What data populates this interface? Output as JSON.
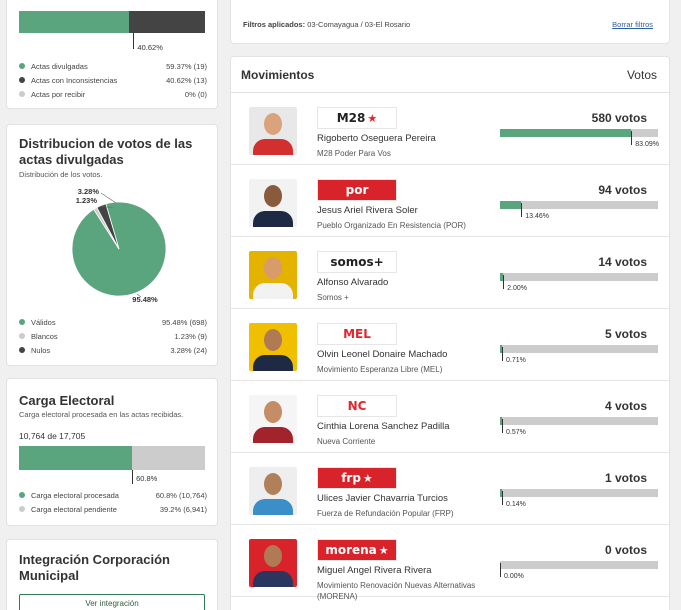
{
  "actas": {
    "bar_label": "40.62%",
    "divulgadas_fraction": 0.5937,
    "legend": [
      {
        "label": "Actas divulgadas",
        "value": "59.37% (19)",
        "color": "#5aa57e"
      },
      {
        "label": "Actas con Inconsistencias",
        "value": "40.62% (13)",
        "color": "#444444"
      },
      {
        "label": "Actas por recibir",
        "value": "0% (0)",
        "color": "#cccccc"
      }
    ]
  },
  "distribucion": {
    "title": "Distribucion de votos de las actas divulgadas",
    "subtitle": "Distribución de los votos.",
    "legend": [
      {
        "label": "Válidos",
        "value": "95.48% (698)",
        "color": "#5aa57e"
      },
      {
        "label": "Blancos",
        "value": "1.23% (9)",
        "color": "#cccccc"
      },
      {
        "label": "Nulos",
        "value": "3.28% (24)",
        "color": "#444444"
      }
    ]
  },
  "chart_data": {
    "type": "pie",
    "categories": [
      "Válidos",
      "Blancos",
      "Nulos"
    ],
    "values": [
      95.48,
      1.23,
      3.28
    ],
    "data_labels": [
      "95.48%",
      "1.23%",
      "3.28%"
    ],
    "colors": [
      "#5aa57e",
      "#cccccc",
      "#444444"
    ]
  },
  "carga": {
    "title": "Carga Electoral",
    "subtitle": "Carga electoral procesada en las actas recibidas.",
    "count": "10,764 de 17,705",
    "bar_label": "60.8%",
    "processed_fraction": 0.608,
    "legend": [
      {
        "label": "Carga electoral procesada",
        "value": "60.8% (10,764)",
        "color": "#5aa57e"
      },
      {
        "label": "Carga electoral pendiente",
        "value": "39.2% (6,941)",
        "color": "#cccccc"
      }
    ]
  },
  "integracion": {
    "title": "Integración Corporación Municipal",
    "button": "Ver integración"
  },
  "filters": {
    "label": "Filtros aplicados:",
    "value": "03-Comayagua / 03-El Rosario",
    "clear": "Borrar filtros"
  },
  "movimientos": {
    "header": "Movimientos",
    "votes_header": "Votos",
    "rows": [
      {
        "name": "Rigoberto Oseguera Pereira",
        "party": "M28 Poder Para Vos",
        "votes": "580 votos",
        "pct": "83.09%",
        "fraction": 0.8309,
        "logo": "M28",
        "logo_icon": "star-icon",
        "logo_color": "#e3262d",
        "logo_bg": "#ffffff",
        "logo_text_color": "#222222",
        "shirt": "#d32f2f",
        "skin": "#d9a47c",
        "bg": "#e8e8e8"
      },
      {
        "name": "Jesus Ariel Rivera Soler",
        "party": "Pueblo Organizado En Resistencia (POR)",
        "votes": "94 votos",
        "pct": "13.46%",
        "fraction": 0.1346,
        "logo": "por",
        "logo_icon": "",
        "logo_color": "#ffffff",
        "logo_bg": "#d8232a",
        "logo_text_color": "#ffffff",
        "shirt": "#1e2a44",
        "skin": "#8a5a3c",
        "bg": "#f2f2f2"
      },
      {
        "name": "Alfonso Alvarado",
        "party": "Somos +",
        "votes": "14 votos",
        "pct": "2.00%",
        "fraction": 0.02,
        "logo": "somos+",
        "logo_icon": "",
        "logo_color": "#222222",
        "logo_bg": "#ffffff",
        "logo_text_color": "#222222",
        "shirt": "#f2f2f2",
        "skin": "#d99a6c",
        "bg": "#e3b300"
      },
      {
        "name": "Olvin Leonel Donaire Machado",
        "party": "Movimiento Esperanza Libre (MEL)",
        "votes": "5 votos",
        "pct": "0.71%",
        "fraction": 0.0071,
        "logo": "MEL",
        "logo_icon": "",
        "logo_color": "#e3262d",
        "logo_bg": "#ffffff",
        "logo_text_color": "#e3262d",
        "shirt": "#1e2a44",
        "skin": "#b07a55",
        "bg": "#f0c000"
      },
      {
        "name": "Cinthia Lorena Sanchez Padilla",
        "party": "Nueva Corriente",
        "votes": "4 votos",
        "pct": "0.57%",
        "fraction": 0.0057,
        "logo": "NC",
        "logo_icon": "",
        "logo_color": "#e3262d",
        "logo_bg": "#ffffff",
        "logo_text_color": "#e3262d",
        "shirt": "#a3232c",
        "skin": "#c48d66",
        "bg": "#f5f5f5"
      },
      {
        "name": "Ulices Javier Chavarria Turcios",
        "party": "Fuerza de Refundación Popular (FRP)",
        "votes": "1 votos",
        "pct": "0.14%",
        "fraction": 0.0014,
        "logo": "frp",
        "logo_icon": "star-icon",
        "logo_color": "#ffffff",
        "logo_bg": "#d8232a",
        "logo_text_color": "#ffffff",
        "shirt": "#3a8fc9",
        "skin": "#b0805a",
        "bg": "#eeeeee"
      },
      {
        "name": "Miguel Angel Rivera Rivera",
        "party": "Movimiento Renovación Nuevas Alternativas (MORENA)",
        "votes": "0 votos",
        "pct": "0.00%",
        "fraction": 0.0,
        "logo": "morena",
        "logo_icon": "star-icon",
        "logo_color": "#ffffff",
        "logo_bg": "#d8232a",
        "logo_text_color": "#ffffff",
        "shirt": "#2a3560",
        "skin": "#b07a55",
        "bg": "#d8232a"
      }
    ]
  }
}
